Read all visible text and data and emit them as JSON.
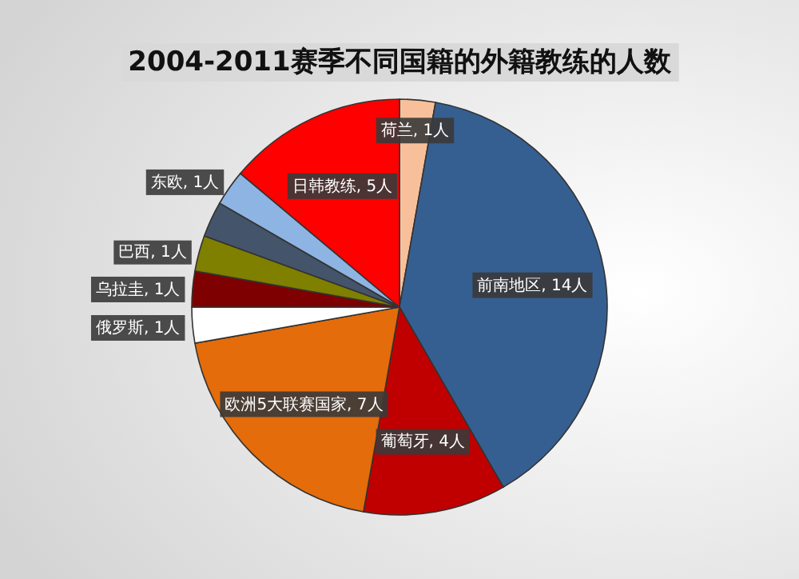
{
  "chart_data": {
    "type": "pie",
    "title": "2004-2011赛季不同国籍的外籍教练的人数",
    "categories": [
      "荷兰",
      "前南地区",
      "葡萄牙",
      "欧洲5大联赛国家",
      "俄罗斯",
      "乌拉圭",
      "巴西",
      null,
      "东欧",
      "日韩教练"
    ],
    "values": [
      1,
      14,
      4,
      7,
      1,
      1,
      1,
      1,
      1,
      5
    ],
    "value_labels": [
      "1人",
      "14人",
      "4人",
      "7人",
      "1人",
      "1人",
      "1人",
      null,
      "1人",
      "5人"
    ],
    "colors": [
      "#f8c09a",
      "#365f91",
      "#c00000",
      "#e46c0a",
      "#ffffff",
      "#7f0000",
      "#7f7f00",
      "#44546a",
      "#8db4e2",
      "#ff0000"
    ]
  }
}
